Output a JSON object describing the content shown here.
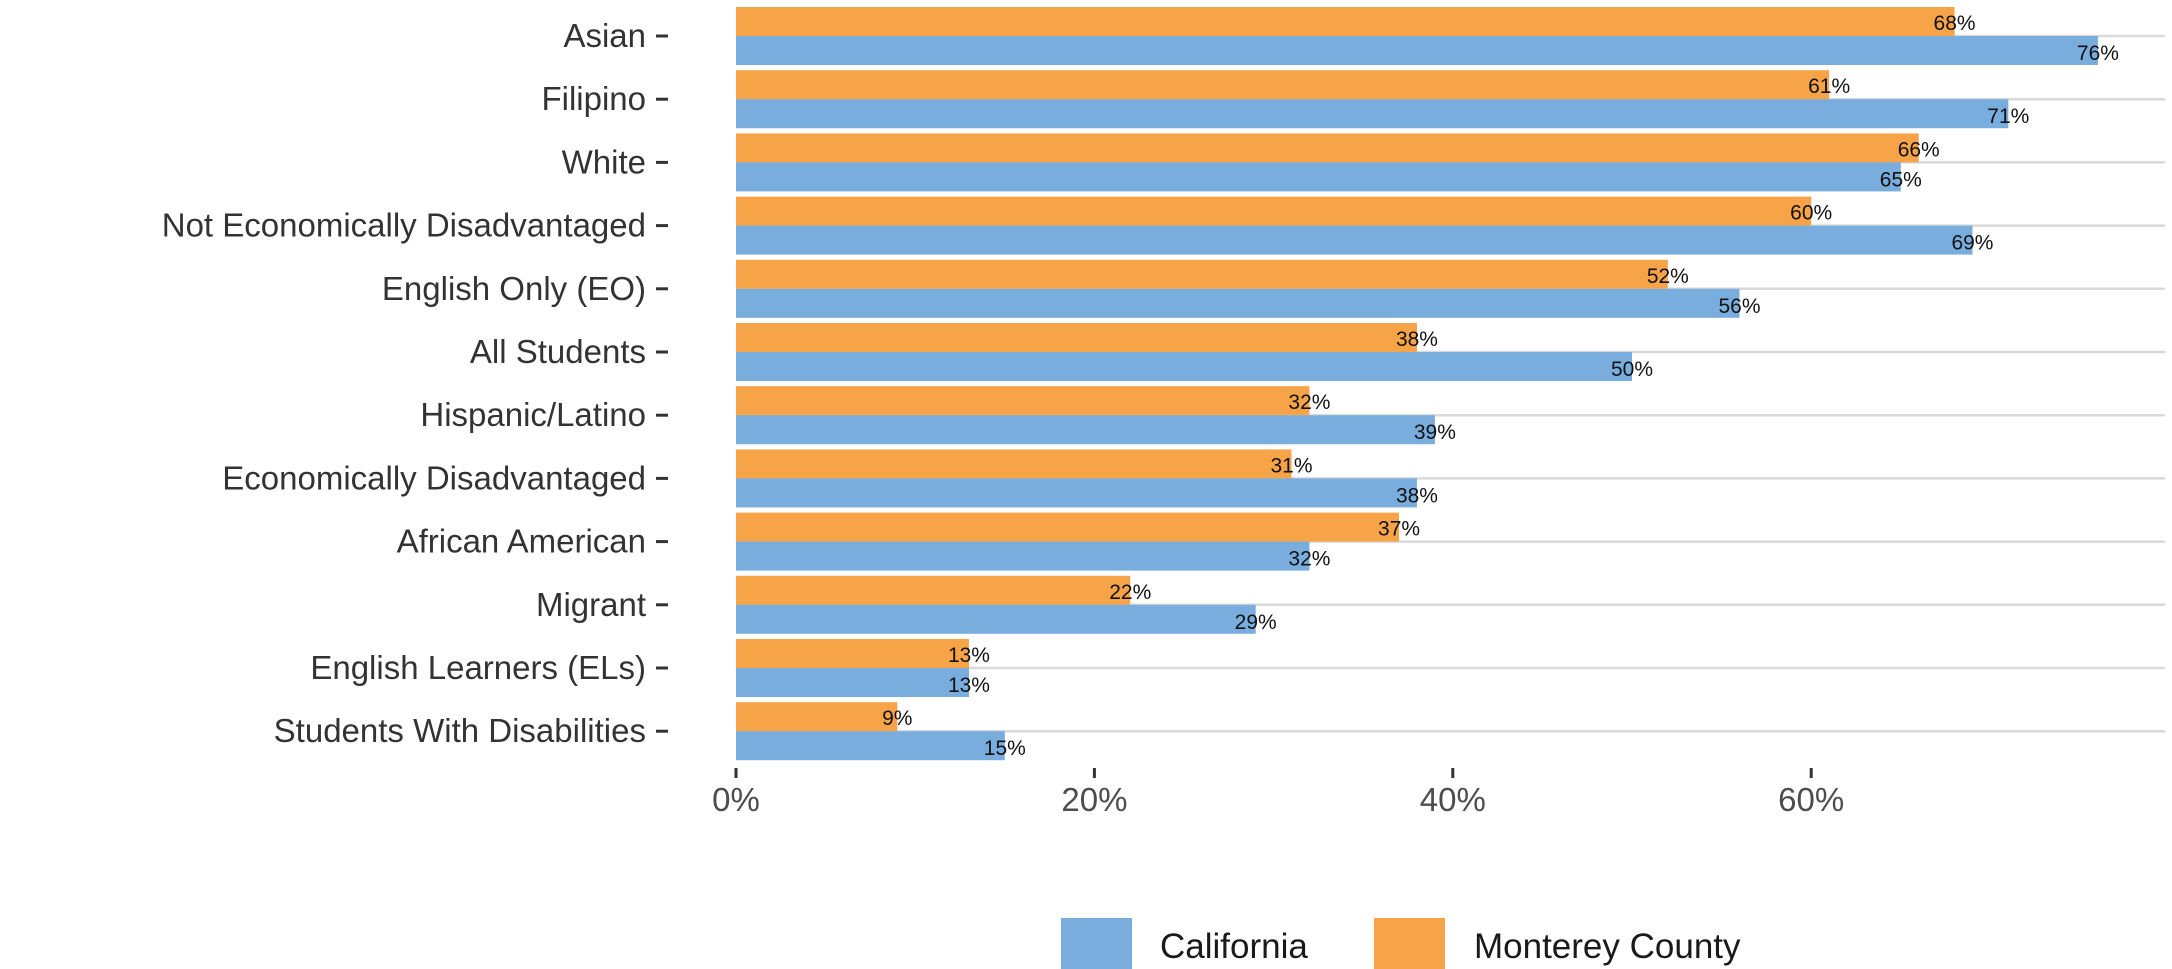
{
  "chart_data": {
    "type": "bar",
    "orientation": "horizontal",
    "categories": [
      "Asian",
      "Filipino",
      "White",
      "Not Economically Disadvantaged",
      "English Only (EO)",
      "All Students",
      "Hispanic/Latino",
      "Economically Disadvantaged",
      "African American",
      "Migrant",
      "English Learners (ELs)",
      "Students With Disabilities"
    ],
    "series": [
      {
        "name": "Monterey County",
        "color": "#F7A348",
        "values": [
          68,
          61,
          66,
          60,
          52,
          38,
          32,
          31,
          37,
          22,
          13,
          9
        ]
      },
      {
        "name": "California",
        "color": "#78ADDE",
        "values": [
          76,
          71,
          65,
          69,
          56,
          50,
          39,
          38,
          32,
          29,
          13,
          15
        ]
      }
    ],
    "x_ticks": [
      "0%",
      "20%",
      "40%",
      "60%"
    ],
    "x_tick_values": [
      0,
      20,
      40,
      60
    ],
    "xlim": [
      0,
      80
    ],
    "value_suffix": "%",
    "grid": "horizontal",
    "legend": {
      "position": "bottom",
      "items": [
        {
          "name": "California",
          "color": "#78ADDE"
        },
        {
          "name": "Monterey County",
          "color": "#F7A348"
        }
      ]
    },
    "title": "",
    "xlabel": "",
    "ylabel": ""
  }
}
